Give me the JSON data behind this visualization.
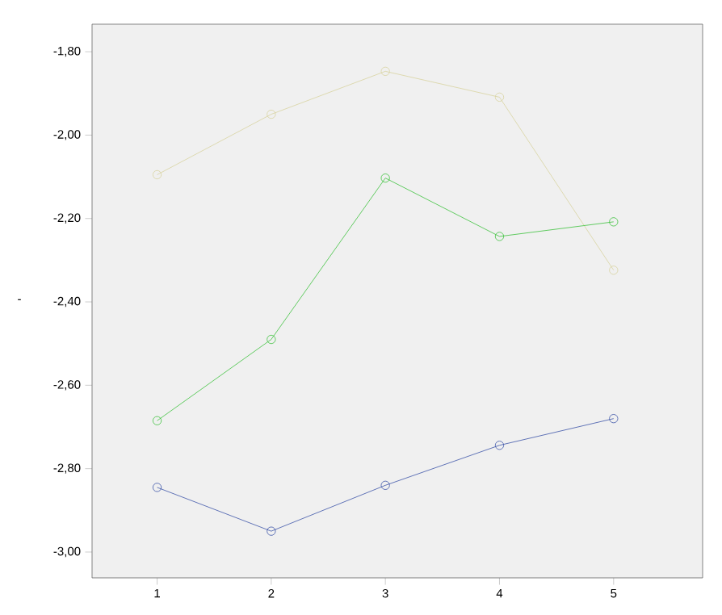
{
  "chart_data": {
    "type": "line",
    "ylabel": "-",
    "x": [
      1,
      2,
      3,
      4,
      5
    ],
    "series": [
      {
        "color": "#d8d3a0",
        "values": [
          -2.095,
          -1.95,
          -1.847,
          -1.909,
          -2.324
        ]
      },
      {
        "color": "#3cc13c",
        "values": [
          -2.685,
          -2.49,
          -2.103,
          -2.243,
          -2.208
        ]
      },
      {
        "color": "#3c54a8",
        "values": [
          -2.845,
          -2.95,
          -2.84,
          -2.744,
          -2.68
        ]
      }
    ],
    "xlim": [
      0.43,
      5.78
    ],
    "xticks": [
      1,
      2,
      3,
      4,
      5
    ],
    "ylim": [
      -3.062,
      -1.734
    ],
    "yticks": [
      {
        "value": -3.0,
        "label": "-3,00"
      },
      {
        "value": -2.8,
        "label": "-2,80"
      },
      {
        "value": -2.6,
        "label": "-2,60"
      },
      {
        "value": -2.4,
        "label": "-2,40"
      },
      {
        "value": -2.2,
        "label": "-2,20"
      },
      {
        "value": -2.0,
        "label": "-2,00"
      },
      {
        "value": -1.8,
        "label": "-1,80"
      }
    ],
    "marker": "circle",
    "line_style": "solid",
    "grid": false
  }
}
